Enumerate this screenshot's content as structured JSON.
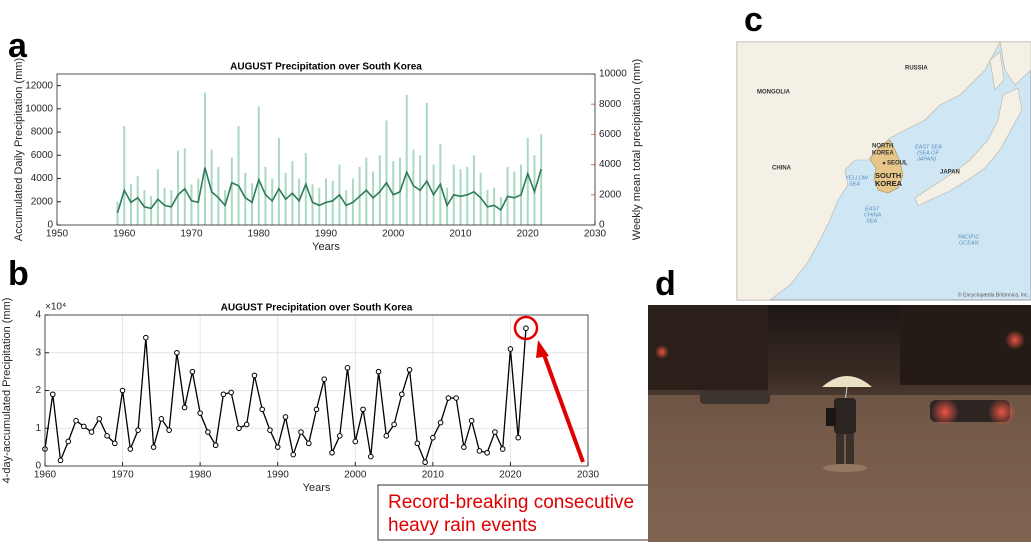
{
  "chart_data": [
    {
      "type": "combo",
      "panel_label": "a",
      "title": "AUGUST Precipitation over South Korea",
      "xlabel": "Years",
      "ylabel": "Accumulated Daily Precipitation (mm)",
      "y2label": "Weekly mean total precipitation (mm)",
      "x": [
        1959,
        1960,
        1961,
        1962,
        1963,
        1964,
        1965,
        1966,
        1967,
        1968,
        1969,
        1970,
        1971,
        1972,
        1973,
        1974,
        1975,
        1976,
        1977,
        1978,
        1979,
        1980,
        1981,
        1982,
        1983,
        1984,
        1985,
        1986,
        1987,
        1988,
        1989,
        1990,
        1991,
        1992,
        1993,
        1994,
        1995,
        1996,
        1997,
        1998,
        1999,
        2000,
        2001,
        2002,
        2003,
        2004,
        2005,
        2006,
        2007,
        2008,
        2009,
        2010,
        2011,
        2012,
        2013,
        2014,
        2015,
        2016,
        2017,
        2018,
        2019,
        2020,
        2021,
        2022
      ],
      "series": [
        {
          "color": "#a9d9c2",
          "values": [
            2000,
            8500,
            3500,
            4200,
            3000,
            2500,
            4800,
            3200,
            3000,
            6400,
            6600,
            3500,
            4000,
            11400,
            6500,
            5000,
            3000,
            5800,
            8500,
            4500,
            3600,
            10200,
            5000,
            4000,
            7500,
            4500,
            5500,
            4000,
            6200,
            3500,
            3200,
            4000,
            3800,
            5200,
            3000,
            4000,
            5000,
            5800,
            4600,
            6000,
            9000,
            5500,
            5800,
            11200,
            6500,
            6000,
            10500,
            5200,
            7000,
            3200,
            5200,
            4800,
            5000,
            6000,
            4500,
            3000,
            3200,
            2400,
            5000,
            4600,
            5200,
            7500,
            6000,
            7800
          ]
        },
        {
          "color": "#2f7a58",
          "axis": "y2",
          "values": [
            800,
            2300,
            1500,
            1800,
            1200,
            1100,
            1700,
            1300,
            1200,
            2000,
            2400,
            1600,
            1500,
            3800,
            2200,
            1800,
            1300,
            2800,
            2600,
            1800,
            1500,
            3000,
            2000,
            1600,
            2400,
            1700,
            2100,
            1600,
            2700,
            1500,
            1300,
            1500,
            1600,
            2000,
            1300,
            1500,
            1900,
            2300,
            1800,
            2200,
            2800,
            2000,
            2200,
            3500,
            2600,
            2300,
            2900,
            2000,
            2700,
            1300,
            2000,
            1900,
            2000,
            2200,
            1800,
            1200,
            1300,
            1000,
            1900,
            1800,
            2000,
            3400,
            2200,
            3700
          ]
        }
      ],
      "xlim": [
        1950,
        2030
      ],
      "xticks": [
        1950,
        1960,
        1970,
        1980,
        1990,
        2000,
        2010,
        2020,
        2030
      ],
      "ylim": [
        0,
        13000
      ],
      "yticks": [
        0,
        2000,
        4000,
        6000,
        8000,
        10000,
        12000
      ],
      "y2lim": [
        0,
        10000
      ],
      "y2ticks": [
        0,
        2000,
        4000,
        6000,
        8000,
        10000
      ],
      "y2color": "#e8763a",
      "grid": false
    },
    {
      "type": "line",
      "panel_label": "b",
      "title": "AUGUST Precipitation over South Korea",
      "xlabel": "Years",
      "ylabel": "4-day-accumulated Precipitation (mm)",
      "ylabel_exponent": "×10⁴",
      "x": [
        1960,
        1961,
        1962,
        1963,
        1964,
        1965,
        1966,
        1967,
        1968,
        1969,
        1970,
        1971,
        1972,
        1973,
        1974,
        1975,
        1976,
        1977,
        1978,
        1979,
        1980,
        1981,
        1982,
        1983,
        1984,
        1985,
        1986,
        1987,
        1988,
        1989,
        1990,
        1991,
        1992,
        1993,
        1994,
        1995,
        1996,
        1997,
        1998,
        1999,
        2000,
        2001,
        2002,
        2003,
        2004,
        2005,
        2006,
        2007,
        2008,
        2009,
        2010,
        2011,
        2012,
        2013,
        2014,
        2015,
        2016,
        2017,
        2018,
        2019,
        2020,
        2021,
        2022
      ],
      "series": [
        {
          "color": "#000000",
          "values": [
            0.45,
            1.9,
            0.15,
            0.65,
            1.2,
            1.05,
            0.9,
            1.25,
            0.8,
            0.6,
            2.0,
            0.45,
            0.95,
            3.4,
            0.5,
            1.25,
            0.95,
            3.0,
            1.55,
            2.5,
            1.4,
            0.9,
            0.55,
            1.9,
            1.95,
            1.0,
            1.1,
            2.4,
            1.5,
            0.95,
            0.5,
            1.3,
            0.3,
            0.9,
            0.6,
            1.5,
            2.3,
            0.35,
            0.8,
            2.6,
            0.65,
            1.5,
            0.25,
            2.5,
            0.8,
            1.1,
            1.9,
            2.55,
            0.6,
            0.1,
            0.75,
            1.15,
            1.8,
            1.8,
            0.5,
            1.2,
            0.4,
            0.35,
            0.9,
            0.45,
            3.1,
            0.75,
            3.65
          ]
        }
      ],
      "xlim": [
        1960,
        2030
      ],
      "xticks": [
        1960,
        1970,
        1980,
        1990,
        2000,
        2010,
        2020,
        2030
      ],
      "ylim": [
        0,
        4
      ],
      "yticks": [
        0,
        1,
        2,
        3,
        4
      ],
      "grid": true,
      "annotation": [
        "Record-breaking consecutive",
        "heavy rain events"
      ]
    }
  ],
  "map": {
    "panel_label": "c",
    "labels": {
      "russia": "RUSSIA",
      "mongolia": "MONGOLIA",
      "china": "CHINA",
      "north_korea": [
        "NORTH",
        "KOREA"
      ],
      "seoul": "SEOUL",
      "south_korea": [
        "SOUTH",
        "KOREA"
      ],
      "japan": "JAPAN",
      "east_sea": [
        "EAST SEA",
        "(SEA OF",
        "JAPAN)"
      ],
      "yellow_sea": [
        "YELLOW",
        "SEA"
      ],
      "east_china_sea": [
        "EAST",
        "CHINA",
        "SEA"
      ],
      "pacific": [
        "PACIFIC",
        "OCEAN"
      ]
    },
    "credit": "© Encyclopædia Britannica, Inc."
  },
  "photo": {
    "panel_label": "d"
  }
}
